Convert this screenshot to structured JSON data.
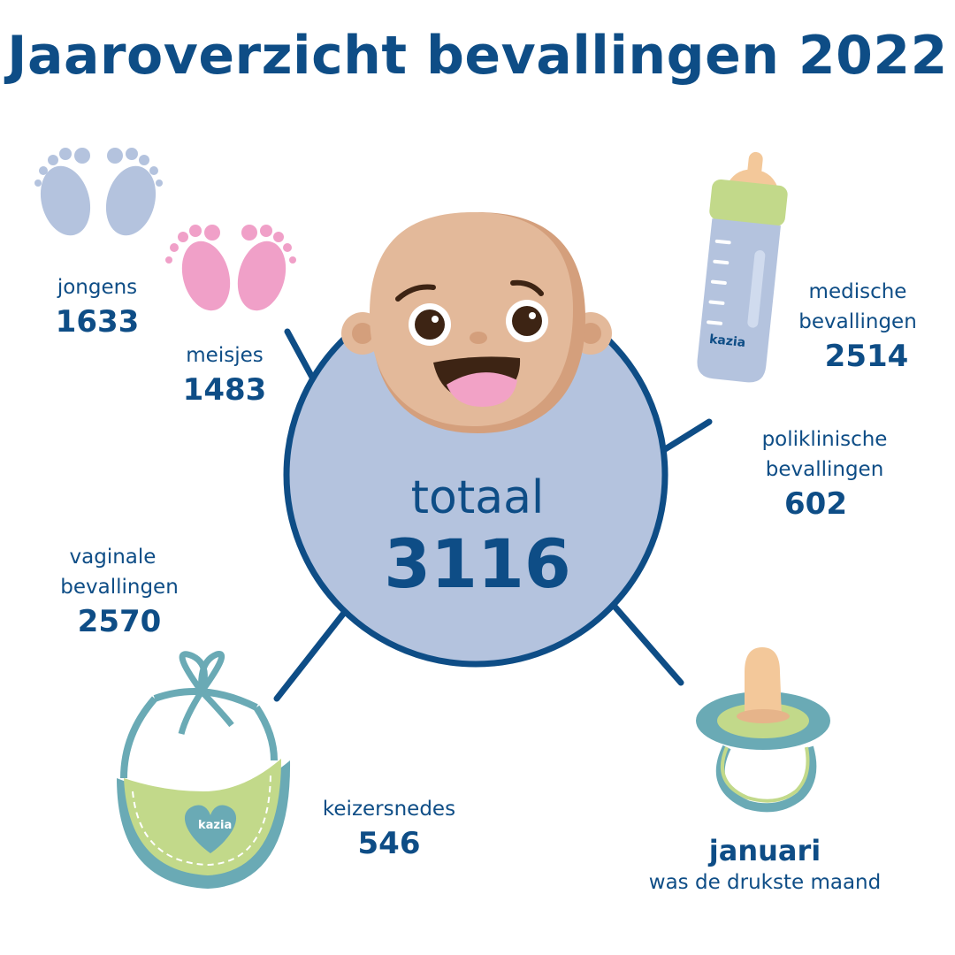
{
  "title": "Jaaroverzicht bevallingen 2022",
  "center": {
    "label": "totaal",
    "value": "3116"
  },
  "stats": {
    "boys": {
      "label": "jongens",
      "value": "1633"
    },
    "girls": {
      "label": "meisjes",
      "value": "1483"
    },
    "medical": {
      "label_line1": "medische",
      "label_line2": "bevallingen",
      "value": "2514"
    },
    "outpatient": {
      "label_line1": "poliklinische",
      "label_line2": "bevallingen",
      "value": "602"
    },
    "vaginal": {
      "label_line1": "vaginale",
      "label_line2": "bevallingen",
      "value": "2570"
    },
    "caesarean": {
      "label": "keizersnedes",
      "value": "546"
    }
  },
  "busiest_month": {
    "month": "januari",
    "caption": "was de drukste maand"
  },
  "logo": {
    "text": "kazia"
  },
  "colors": {
    "primary": "#0e4d86",
    "circle_fill": "#b4c3de",
    "blue_feet": "#b4c3de",
    "pink_feet": "#f0a0c8",
    "skin": "#e3b99a",
    "skin_shade": "#d49f7c",
    "green": "#c2d98a",
    "teal": "#6aaab5"
  },
  "icons": [
    "baby-face-icon",
    "blue-feet-icon",
    "pink-feet-icon",
    "baby-bottle-icon",
    "bib-icon",
    "pacifier-icon"
  ]
}
